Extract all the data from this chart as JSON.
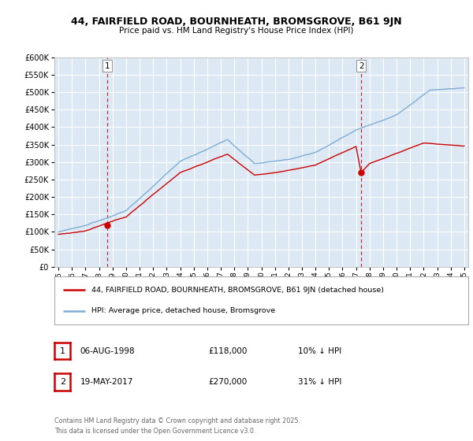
{
  "title": "44, FAIRFIELD ROAD, BOURNHEATH, BROMSGROVE, B61 9JN",
  "subtitle": "Price paid vs. HM Land Registry's House Price Index (HPI)",
  "legend_label_red": "44, FAIRFIELD ROAD, BOURNHEATH, BROMSGROVE, B61 9JN (detached house)",
  "legend_label_blue": "HPI: Average price, detached house, Bromsgrove",
  "annotation1_label": "1",
  "annotation1_date": "06-AUG-1998",
  "annotation1_price": "£118,000",
  "annotation1_hpi": "10% ↓ HPI",
  "annotation2_label": "2",
  "annotation2_date": "19-MAY-2017",
  "annotation2_price": "£270,000",
  "annotation2_hpi": "31% ↓ HPI",
  "footer": "Contains HM Land Registry data © Crown copyright and database right 2025.\nThis data is licensed under the Open Government Licence v3.0.",
  "ylim": [
    0,
    600000
  ],
  "yticks": [
    0,
    50000,
    100000,
    150000,
    200000,
    250000,
    300000,
    350000,
    400000,
    450000,
    500000,
    550000,
    600000
  ],
  "sale1_year": 1998.6,
  "sale1_price": 118000,
  "sale2_year": 2017.38,
  "sale2_price": 270000,
  "red_color": "#cc0000",
  "blue_color": "#7dadd4",
  "vline_color": "#cc0000",
  "plot_bg_color": "#dce9f5",
  "background_color": "#ffffff",
  "grid_color": "#ffffff"
}
